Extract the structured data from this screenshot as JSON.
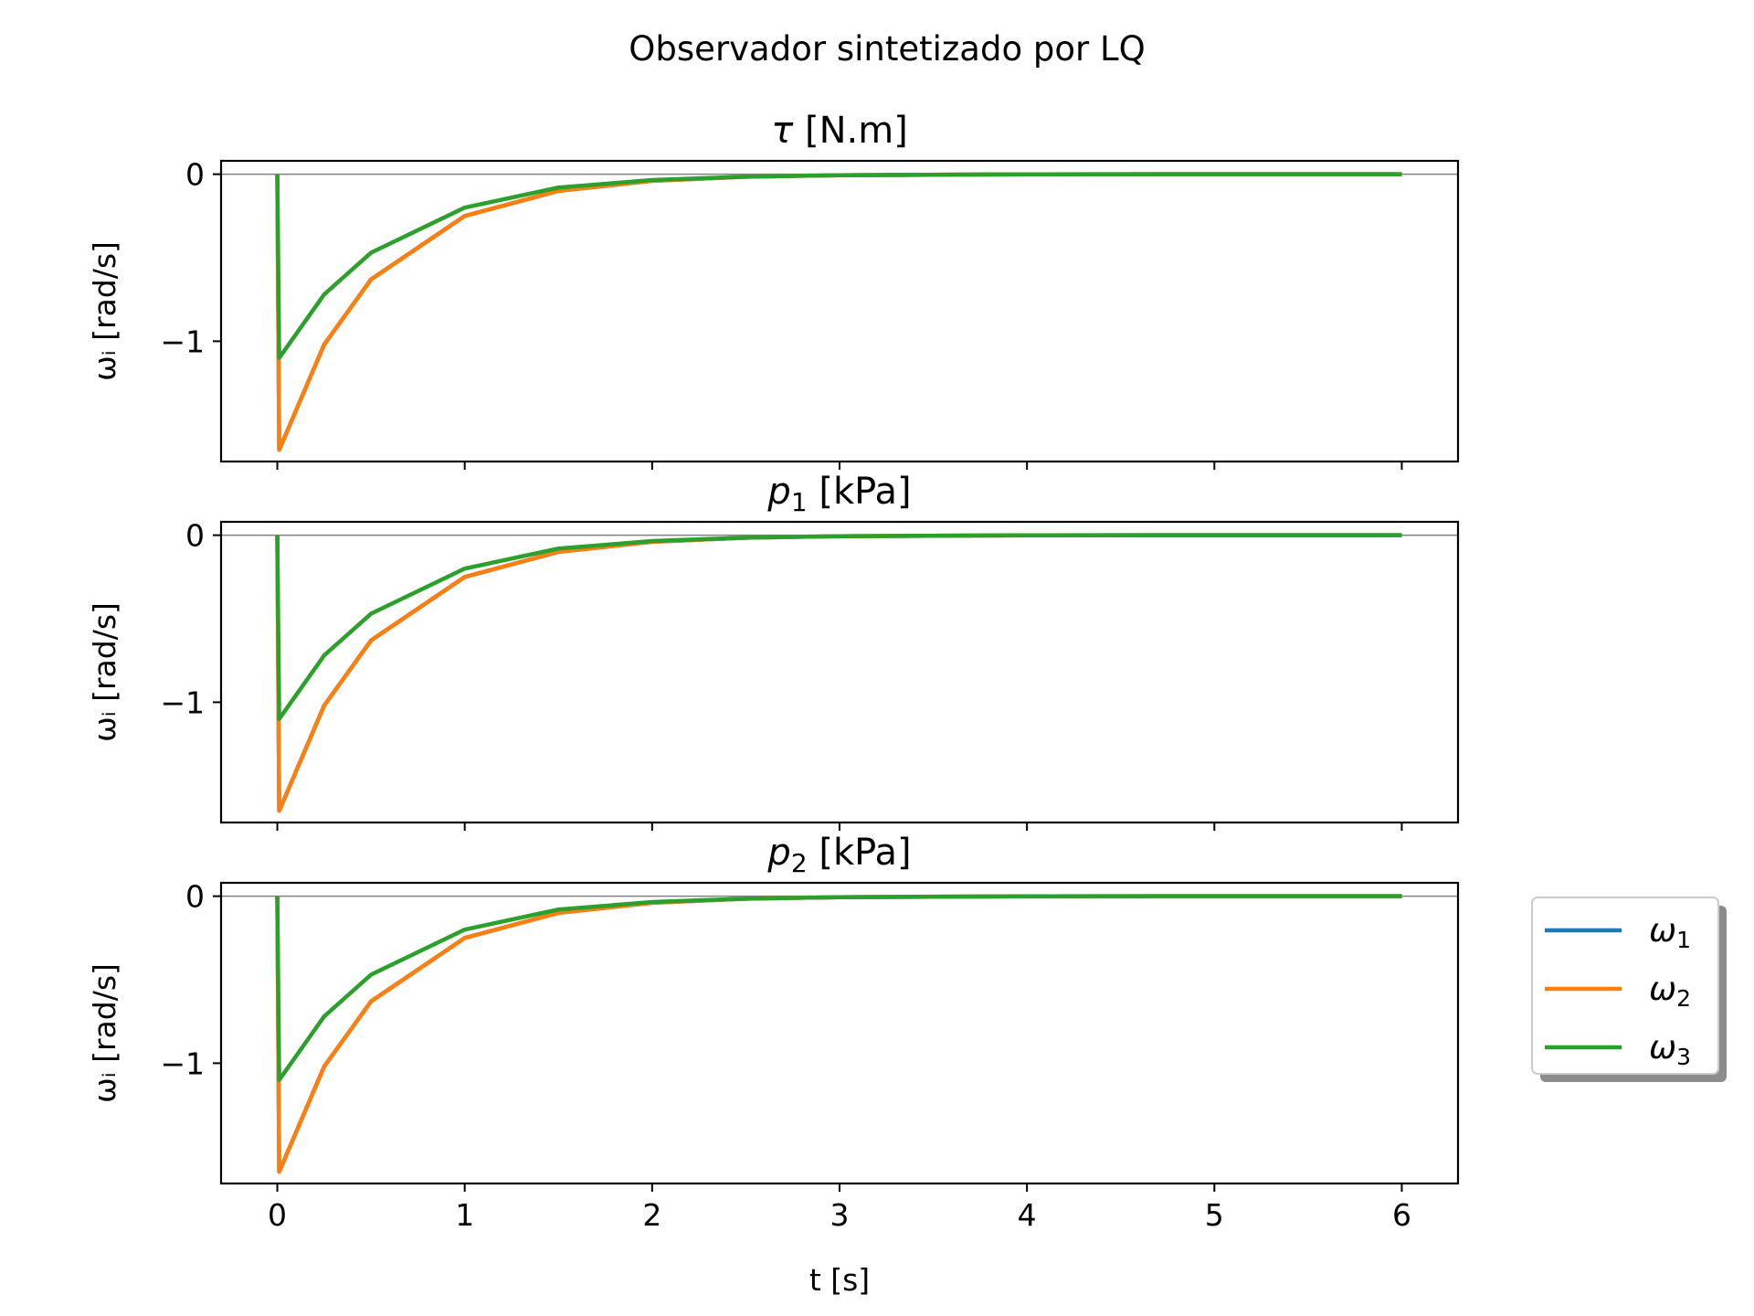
{
  "figure": {
    "title": "Observador sintetizado por LQ",
    "xlabel": "t [s]"
  },
  "chart_data": [
    {
      "type": "line",
      "title": "τ [N.m]",
      "title_symbol": "τ",
      "title_unit": " [N.m]",
      "ylabel": "ωᵢ [rad/s]",
      "xlim": [
        -0.3,
        6.3
      ],
      "ylim": [
        -1.72,
        0.08
      ],
      "x_ticks": [
        0,
        1,
        2,
        3,
        4,
        5,
        6
      ],
      "y_ticks": [
        0,
        -1
      ],
      "y_tick_labels": [
        "0",
        "−1"
      ],
      "x_tick_labels_visible": false,
      "reference_line_y": 0,
      "series": [
        {
          "legend": "ω1",
          "color": "#1f77b4",
          "x": [
            0,
            0.01,
            0.25,
            0.5,
            1,
            1.5,
            2,
            2.5,
            3,
            4,
            5,
            6
          ],
          "y": [
            0,
            -1.65,
            -1.02,
            -0.63,
            -0.25,
            -0.1,
            -0.04,
            -0.015,
            -0.006,
            -0.001,
            0,
            0
          ]
        },
        {
          "legend": "ω2",
          "color": "#ff7f0e",
          "x": [
            0,
            0.01,
            0.25,
            0.5,
            1,
            1.5,
            2,
            2.5,
            3,
            4,
            5,
            6
          ],
          "y": [
            0,
            -1.65,
            -1.02,
            -0.63,
            -0.25,
            -0.1,
            -0.04,
            -0.015,
            -0.006,
            -0.001,
            0,
            0
          ]
        },
        {
          "legend": "ω3",
          "color": "#2ca02c",
          "x": [
            0,
            0.01,
            0.25,
            0.5,
            1,
            1.5,
            2,
            2.5,
            3,
            4,
            5,
            6
          ],
          "y": [
            0,
            -1.1,
            -0.72,
            -0.47,
            -0.2,
            -0.08,
            -0.035,
            -0.015,
            -0.006,
            -0.001,
            0,
            0
          ]
        }
      ]
    },
    {
      "type": "line",
      "title": "p1 [kPa]",
      "title_symbol": "p",
      "title_sub": "1",
      "title_unit": " [kPa]",
      "ylabel": "ωᵢ [rad/s]",
      "xlim": [
        -0.3,
        6.3
      ],
      "ylim": [
        -1.72,
        0.08
      ],
      "x_ticks": [
        0,
        1,
        2,
        3,
        4,
        5,
        6
      ],
      "y_ticks": [
        0,
        -1
      ],
      "y_tick_labels": [
        "0",
        "−1"
      ],
      "x_tick_labels_visible": false,
      "reference_line_y": 0,
      "series": [
        {
          "legend": "ω1",
          "color": "#1f77b4",
          "x": [
            0,
            0.01,
            0.25,
            0.5,
            1,
            1.5,
            2,
            2.5,
            3,
            4,
            5,
            6
          ],
          "y": [
            0,
            -1.65,
            -1.02,
            -0.63,
            -0.25,
            -0.1,
            -0.04,
            -0.015,
            -0.006,
            -0.001,
            0,
            0
          ]
        },
        {
          "legend": "ω2",
          "color": "#ff7f0e",
          "x": [
            0,
            0.01,
            0.25,
            0.5,
            1,
            1.5,
            2,
            2.5,
            3,
            4,
            5,
            6
          ],
          "y": [
            0,
            -1.65,
            -1.02,
            -0.63,
            -0.25,
            -0.1,
            -0.04,
            -0.015,
            -0.006,
            -0.001,
            0,
            0
          ]
        },
        {
          "legend": "ω3",
          "color": "#2ca02c",
          "x": [
            0,
            0.01,
            0.25,
            0.5,
            1,
            1.5,
            2,
            2.5,
            3,
            4,
            5,
            6
          ],
          "y": [
            0,
            -1.1,
            -0.72,
            -0.47,
            -0.2,
            -0.08,
            -0.035,
            -0.015,
            -0.006,
            -0.001,
            0,
            0
          ]
        }
      ]
    },
    {
      "type": "line",
      "title": "p2 [kPa]",
      "title_symbol": "p",
      "title_sub": "2",
      "title_unit": " [kPa]",
      "ylabel": "ωᵢ [rad/s]",
      "xlim": [
        -0.3,
        6.3
      ],
      "ylim": [
        -1.72,
        0.08
      ],
      "x_ticks": [
        0,
        1,
        2,
        3,
        4,
        5,
        6
      ],
      "x_tick_labels": [
        "0",
        "1",
        "2",
        "3",
        "4",
        "5",
        "6"
      ],
      "y_ticks": [
        0,
        -1
      ],
      "y_tick_labels": [
        "0",
        "−1"
      ],
      "x_tick_labels_visible": true,
      "reference_line_y": 0,
      "series": [
        {
          "legend": "ω1",
          "color": "#1f77b4",
          "x": [
            0,
            0.01,
            0.25,
            0.5,
            1,
            1.5,
            2,
            2.5,
            3,
            4,
            5,
            6
          ],
          "y": [
            0,
            -1.65,
            -1.02,
            -0.63,
            -0.25,
            -0.1,
            -0.04,
            -0.015,
            -0.006,
            -0.001,
            0,
            0
          ]
        },
        {
          "legend": "ω2",
          "color": "#ff7f0e",
          "x": [
            0,
            0.01,
            0.25,
            0.5,
            1,
            1.5,
            2,
            2.5,
            3,
            4,
            5,
            6
          ],
          "y": [
            0,
            -1.65,
            -1.02,
            -0.63,
            -0.25,
            -0.1,
            -0.04,
            -0.015,
            -0.006,
            -0.001,
            0,
            0
          ]
        },
        {
          "legend": "ω3",
          "color": "#2ca02c",
          "x": [
            0,
            0.01,
            0.25,
            0.5,
            1,
            1.5,
            2,
            2.5,
            3,
            4,
            5,
            6
          ],
          "y": [
            0,
            -1.1,
            -0.72,
            -0.47,
            -0.2,
            -0.08,
            -0.035,
            -0.015,
            -0.006,
            -0.001,
            0,
            0
          ]
        }
      ]
    }
  ],
  "legend": {
    "placement": "outside-right-bottom",
    "entries": [
      {
        "symbol": "ω",
        "sub": "1",
        "color": "#1f77b4"
      },
      {
        "symbol": "ω",
        "sub": "2",
        "color": "#ff7f0e"
      },
      {
        "symbol": "ω",
        "sub": "3",
        "color": "#2ca02c"
      }
    ]
  }
}
